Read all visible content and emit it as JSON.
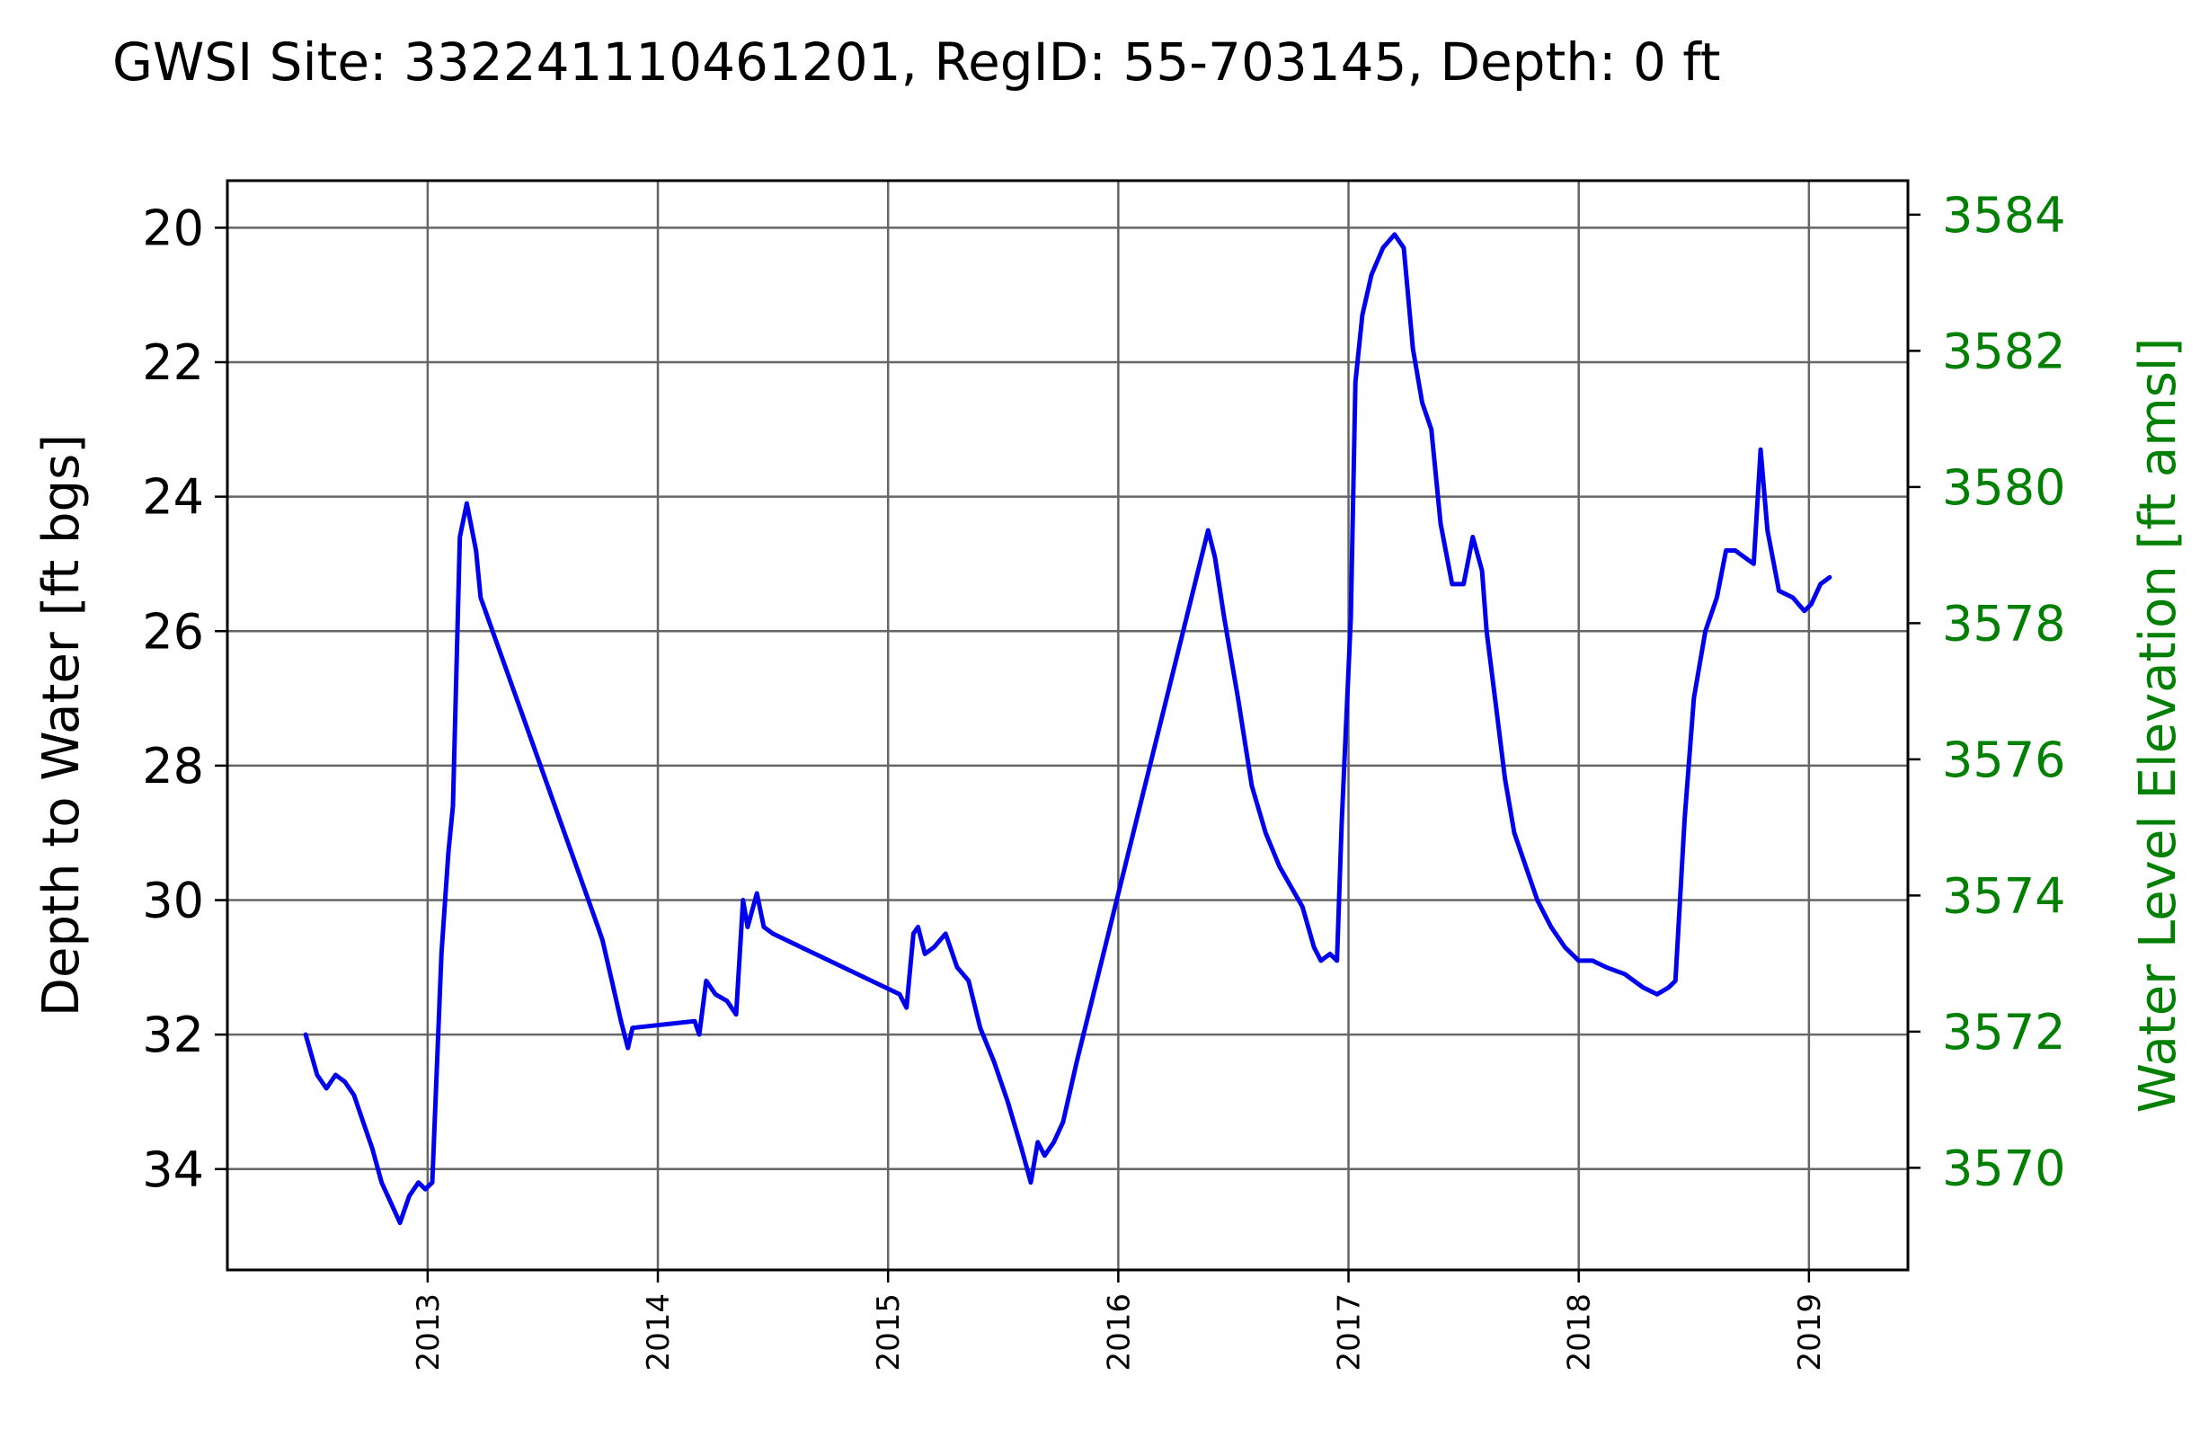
{
  "chart_data": {
    "type": "line",
    "title": "GWSI Site: 332241110461201, RegID: 55-703145, Depth: 0 ft",
    "ylabel": "Depth to Water [ft bgs]",
    "y2label": "Water Level Elevation [ft amsl]",
    "ylim": [
      35.5,
      19.3
    ],
    "y_inverted": true,
    "y2lim": [
      3568.5,
      3584.5
    ],
    "xlim": [
      2012.13,
      2019.43
    ],
    "x_ticks": [
      "2013",
      "2014",
      "2015",
      "2016",
      "2017",
      "2018",
      "2019"
    ],
    "y_ticks": [
      "20",
      "22",
      "24",
      "26",
      "28",
      "30",
      "32",
      "34"
    ],
    "y2_ticks": [
      "3570",
      "3572",
      "3574",
      "3576",
      "3578",
      "3580",
      "3582",
      "3584"
    ],
    "grid": true,
    "colors": {
      "line": "#0000ee",
      "secondary_axis": "#008000",
      "grid": "#666666"
    },
    "series": [
      {
        "x": [
          2012.47,
          2012.52,
          2012.56,
          2012.6,
          2012.64,
          2012.68,
          2012.72,
          2012.76,
          2012.8,
          2012.84,
          2012.88,
          2012.92,
          2012.96,
          2012.99,
          2013.02,
          2013.06,
          2013.09,
          2013.11,
          2013.14,
          2013.17,
          2013.21,
          2013.23,
          2013.74,
          2013.76,
          2013.8,
          2013.84,
          2013.87,
          2013.89,
          2014.16,
          2014.18,
          2014.21,
          2014.25,
          2014.3,
          2014.34,
          2014.37,
          2014.39,
          2014.43,
          2014.46,
          2014.5,
          2015.05,
          2015.08,
          2015.11,
          2015.13,
          2015.16,
          2015.2,
          2015.25,
          2015.3,
          2015.35,
          2015.4,
          2015.46,
          2015.52,
          2015.58,
          2015.62,
          2015.65,
          2015.68,
          2015.72,
          2015.76,
          2015.82,
          2016.39,
          2016.42,
          2016.46,
          2016.52,
          2016.58,
          2016.64,
          2016.7,
          2016.75,
          2016.8,
          2016.85,
          2016.88,
          2016.92,
          2016.95,
          2016.97,
          2017.01,
          2017.03,
          2017.06,
          2017.1,
          2017.15,
          2017.2,
          2017.24,
          2017.28,
          2017.32,
          2017.36,
          2017.4,
          2017.45,
          2017.5,
          2017.54,
          2017.58,
          2017.6,
          2017.64,
          2017.68,
          2017.72,
          2017.76,
          2017.82,
          2017.88,
          2017.94,
          2018.0,
          2018.06,
          2018.12,
          2018.2,
          2018.28,
          2018.34,
          2018.39,
          2018.42,
          2018.46,
          2018.5,
          2018.55,
          2018.6,
          2018.64,
          2018.68,
          2018.72,
          2018.76,
          2018.79,
          2018.82,
          2018.87,
          2018.93,
          2018.98,
          2019.01,
          2019.05,
          2019.09
        ],
        "values": [
          32.0,
          32.6,
          32.8,
          32.6,
          32.7,
          32.9,
          33.3,
          33.7,
          34.2,
          34.5,
          34.8,
          34.4,
          34.2,
          34.3,
          34.2,
          30.8,
          29.3,
          28.6,
          24.6,
          24.1,
          24.8,
          25.5,
          30.4,
          30.6,
          31.2,
          31.8,
          32.2,
          31.9,
          31.8,
          32.0,
          31.2,
          31.4,
          31.5,
          31.7,
          30.0,
          30.4,
          29.9,
          30.4,
          30.5,
          31.4,
          31.6,
          30.5,
          30.4,
          30.8,
          30.7,
          30.5,
          31.0,
          31.2,
          31.9,
          32.4,
          33.0,
          33.7,
          34.2,
          33.6,
          33.8,
          33.6,
          33.3,
          32.4,
          24.5,
          24.9,
          25.8,
          27.0,
          28.3,
          29.0,
          29.5,
          29.8,
          30.1,
          30.7,
          30.9,
          30.8,
          30.9,
          28.9,
          25.8,
          22.3,
          21.3,
          20.7,
          20.3,
          20.1,
          20.3,
          21.8,
          22.6,
          23.0,
          24.4,
          25.3,
          25.3,
          24.6,
          25.1,
          26.0,
          27.1,
          28.2,
          29.0,
          29.4,
          30.0,
          30.4,
          30.7,
          30.9,
          30.9,
          31.0,
          31.1,
          31.3,
          31.4,
          31.3,
          31.2,
          28.8,
          27.0,
          26.0,
          25.5,
          24.8,
          24.8,
          24.9,
          25.0,
          23.3,
          24.5,
          25.4,
          25.5,
          25.7,
          25.6,
          25.3,
          25.2
        ]
      }
    ]
  }
}
